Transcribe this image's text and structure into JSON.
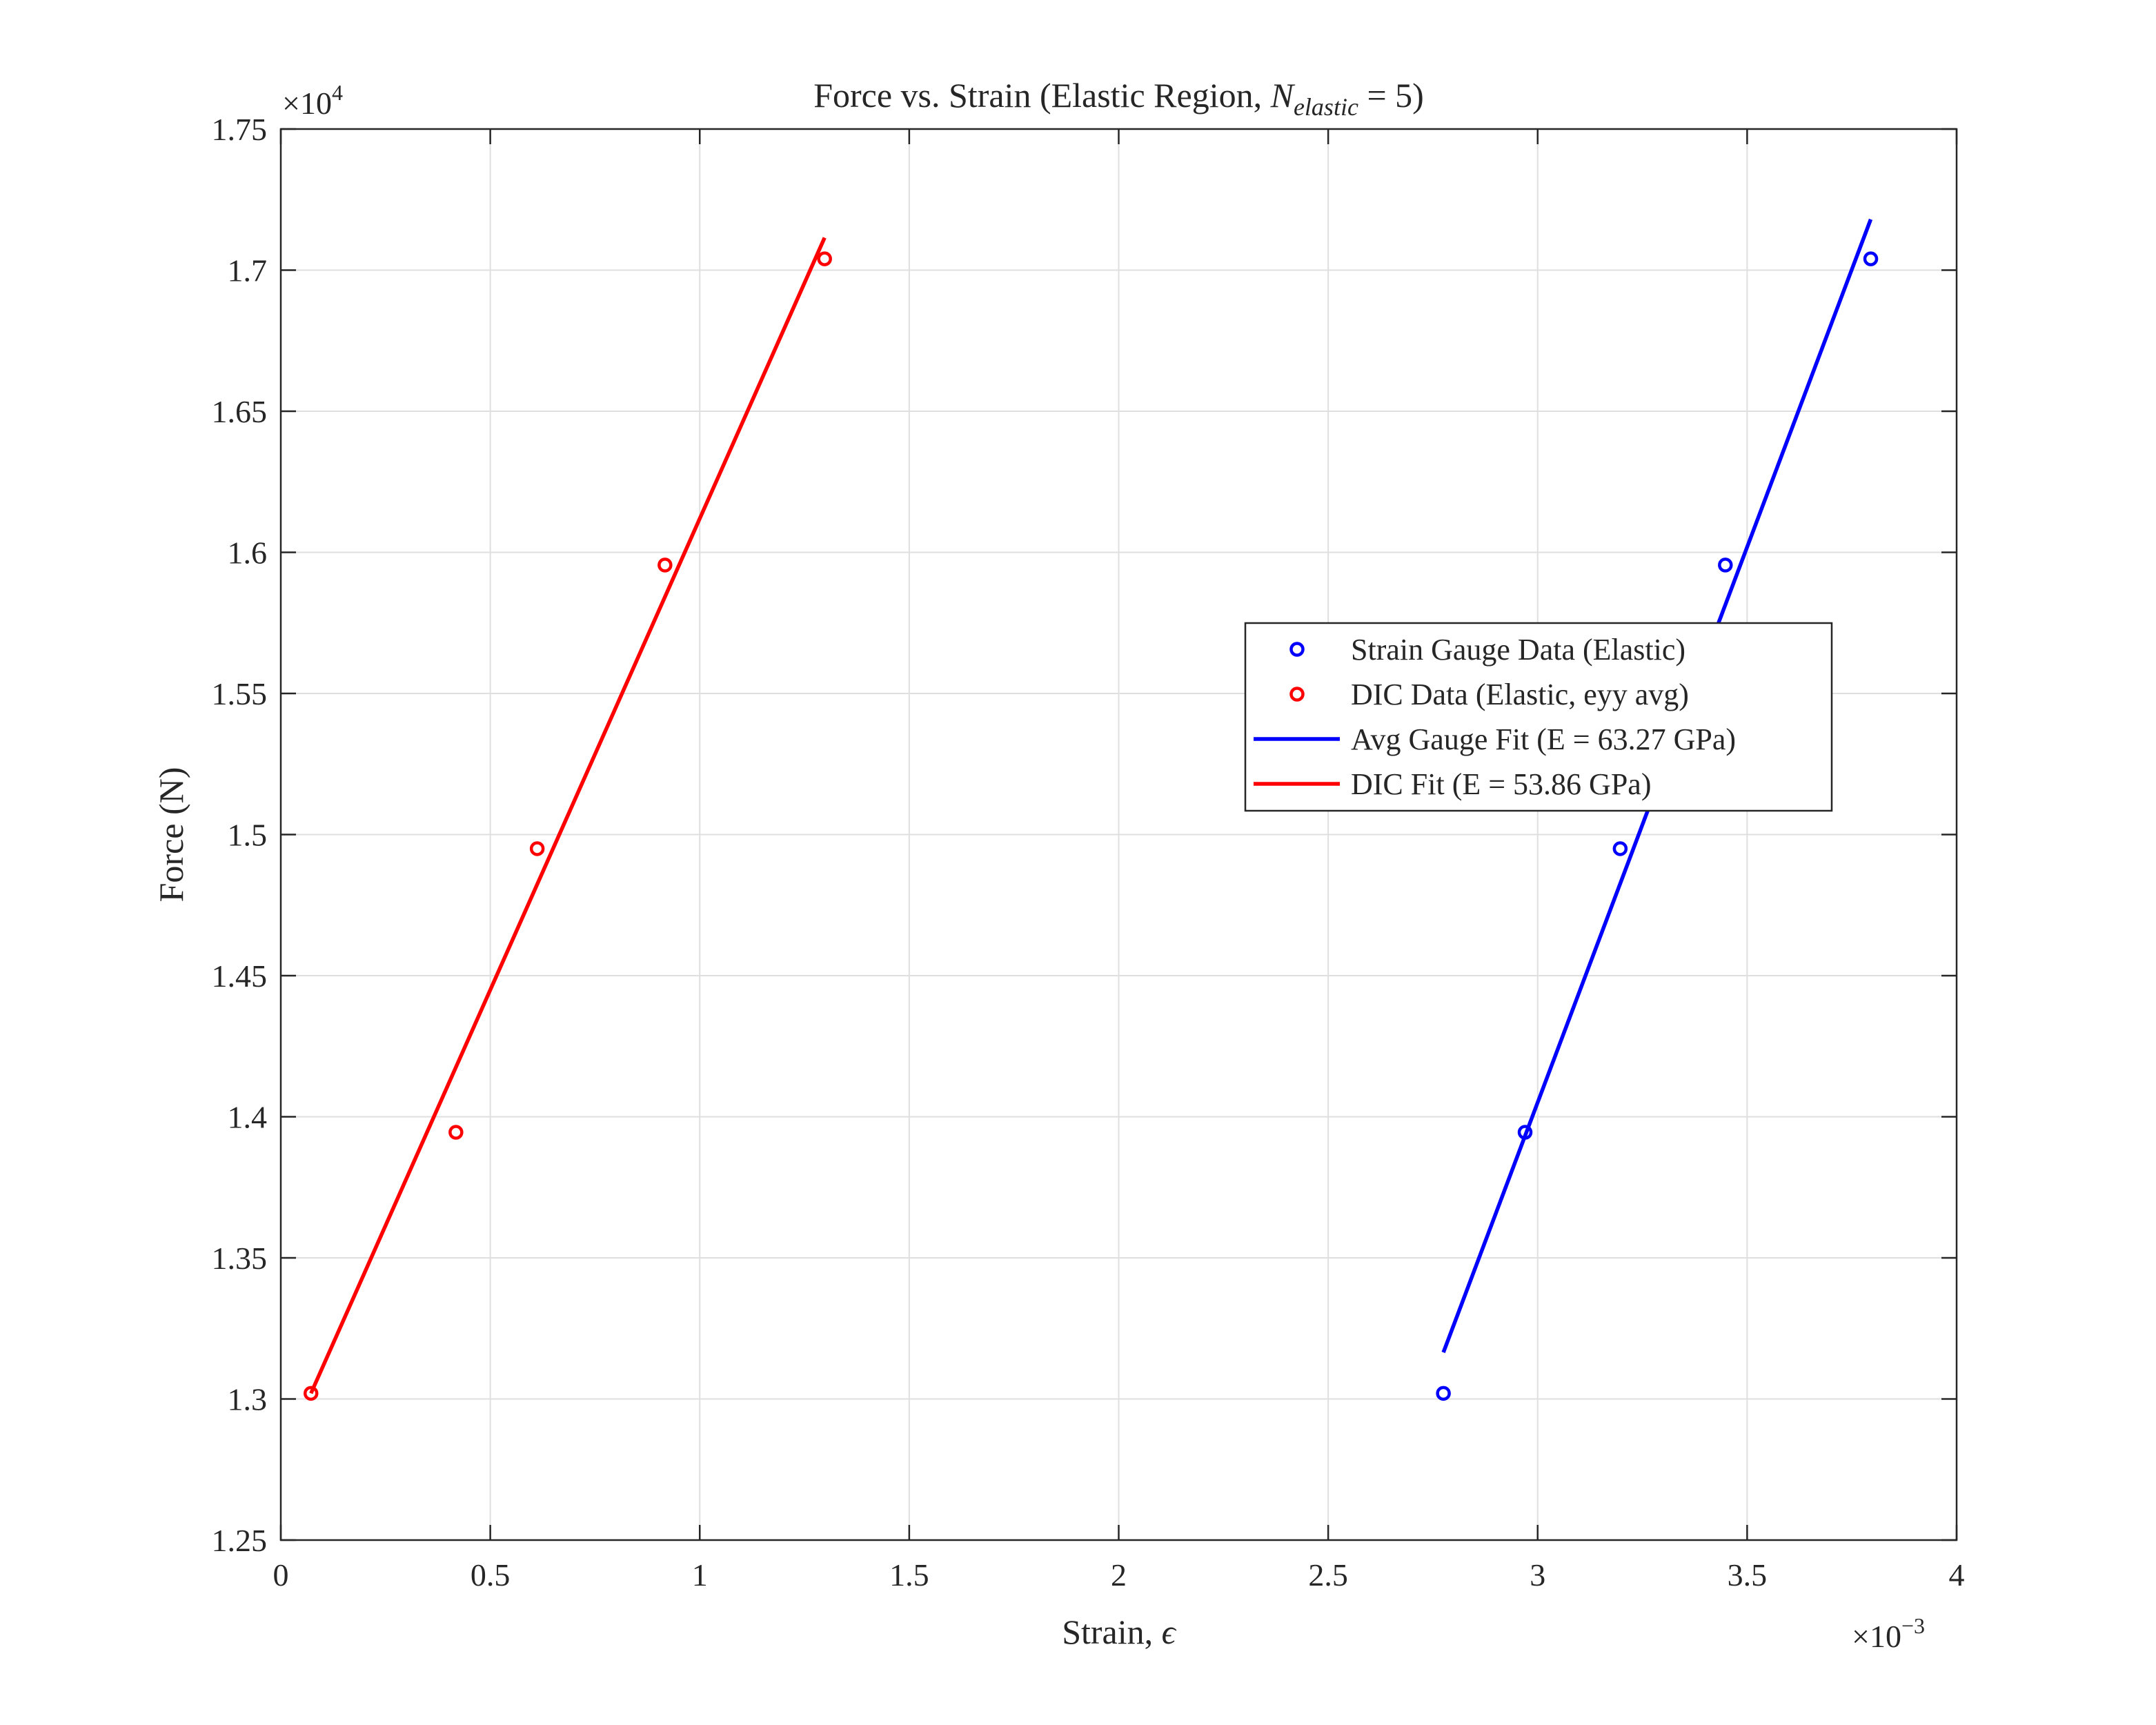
{
  "chart_data": {
    "type": "scatter",
    "title_prefix": "Force vs. Strain (Elastic Region, ",
    "title_var": "N",
    "title_sub": "elastic",
    "title_suffix": " = 5)",
    "xlabel": "Strain, ",
    "xlabel_symbol": "ϵ",
    "ylabel": "Force (N)",
    "x_exponent_base": "×10",
    "x_exponent": "−3",
    "y_exponent_base": "×10",
    "y_exponent": "4",
    "xlim": [
      0,
      0.004
    ],
    "ylim": [
      12500,
      17500
    ],
    "x_ticks": [
      0,
      0.0005,
      0.001,
      0.0015,
      0.002,
      0.0025,
      0.003,
      0.0035,
      0.004
    ],
    "x_tick_labels": [
      "0",
      "0.5",
      "1",
      "1.5",
      "2",
      "2.5",
      "3",
      "3.5",
      "4"
    ],
    "y_ticks": [
      12500,
      13000,
      13500,
      14000,
      14500,
      15000,
      15500,
      16000,
      16500,
      17000,
      17500
    ],
    "y_tick_labels": [
      "1.25",
      "1.3",
      "1.35",
      "1.4",
      "1.45",
      "1.5",
      "1.55",
      "1.6",
      "1.65",
      "1.7",
      "1.75"
    ],
    "grid": true,
    "legend_position": "center-right",
    "series": [
      {
        "name": "Strain Gauge Data (Elastic)",
        "kind": "markers",
        "color": "#0000ff",
        "x": [
          0.002775,
          0.00297,
          0.003197,
          0.003448,
          0.003795
        ],
        "y": [
          13020,
          13945,
          14950,
          15955,
          17040
        ]
      },
      {
        "name": "DIC Data (Elastic, eyy avg)",
        "kind": "markers",
        "color": "#ff0000",
        "x": [
          7.2e-05,
          0.000418,
          0.000612,
          0.000917,
          0.001298
        ],
        "y": [
          13020,
          13945,
          14950,
          15955,
          17040
        ]
      },
      {
        "name": "Avg Gauge Fit (E = 63.27 GPa)",
        "kind": "line",
        "color": "#0000ff",
        "x": [
          0.002775,
          0.003795
        ],
        "y": [
          13165,
          17180
        ]
      },
      {
        "name": "DIC Fit (E = 53.86 GPa)",
        "kind": "line",
        "color": "#ff0000",
        "x": [
          7.2e-05,
          0.001298
        ],
        "y": [
          13020,
          17115
        ]
      }
    ]
  }
}
